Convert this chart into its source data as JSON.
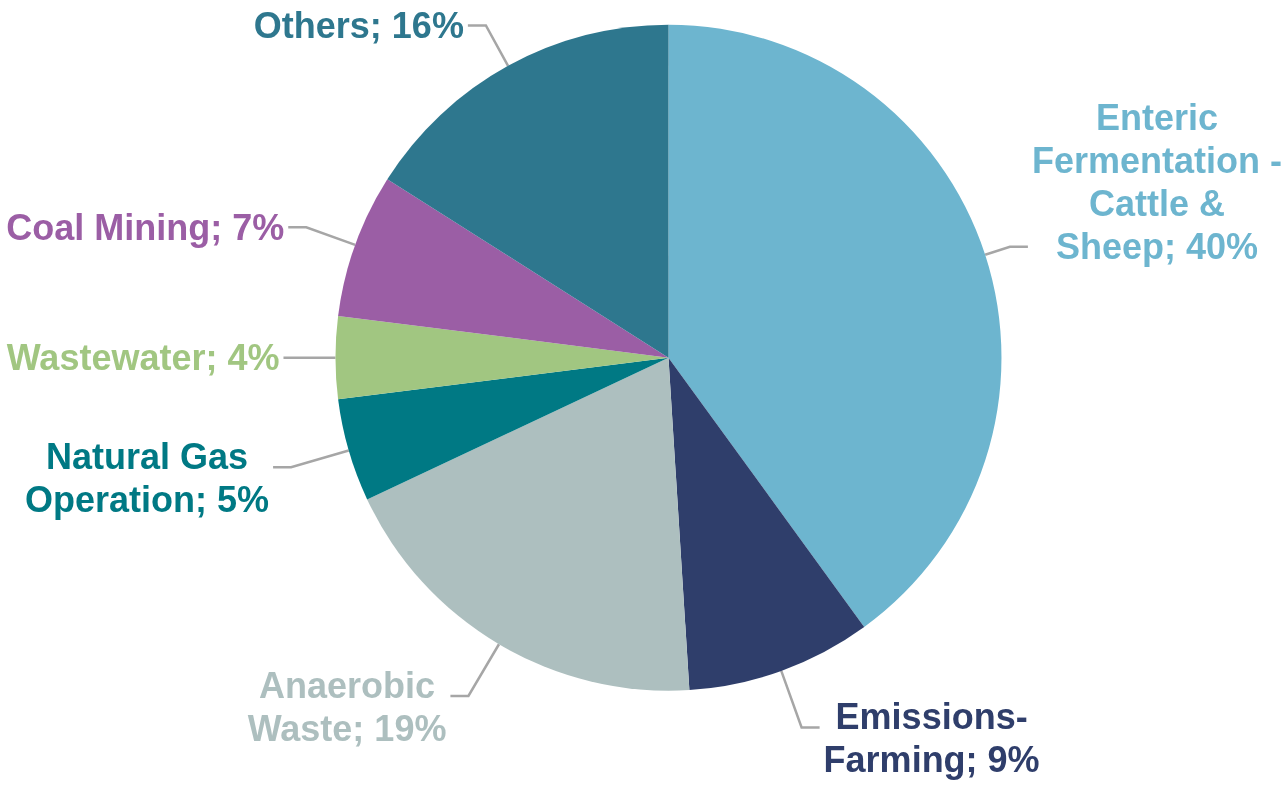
{
  "chart_data": {
    "type": "pie",
    "categories": [
      "Enteric Fermentation - Cattle & Sheep",
      "Emissions-Farming",
      "Anaerobic Waste",
      "Natural Gas Operation",
      "Wastewater",
      "Coal Mining",
      "Others"
    ],
    "values": [
      40,
      9,
      19,
      5,
      4,
      7,
      16
    ],
    "colors": [
      "#6db5cf",
      "#2f3e6b",
      "#adbfbf",
      "#007984",
      "#a1c681",
      "#9b5ea5",
      "#2e778e"
    ],
    "value_labels": [
      "40%",
      "9%",
      "19%",
      "5%",
      "4%",
      "7%",
      "16%"
    ]
  }
}
